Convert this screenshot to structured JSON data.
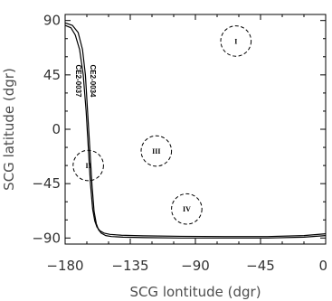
{
  "chart_data": {
    "type": "line",
    "xlabel": "SCG lontitude (dgr)",
    "ylabel": "SCG latitude (dgr)",
    "xlim": [
      -180,
      0
    ],
    "ylim": [
      -95,
      95
    ],
    "xticks": [
      -180,
      -135,
      -90,
      -45,
      0
    ],
    "yticks": [
      90,
      45,
      0,
      -45,
      -90
    ],
    "xtick_labels": [
      "−180",
      "−135",
      "−90",
      "−45",
      "0"
    ],
    "ytick_labels": [
      "90",
      "45",
      "0",
      "−45",
      "−90"
    ],
    "grid": false,
    "series": [
      {
        "name": "CE2-0037",
        "x": [
          -180,
          -175,
          -171,
          -168,
          -166,
          -164.5,
          -163,
          -161.5,
          -160,
          -158.5,
          -157,
          -155,
          -152,
          -148,
          -140,
          -125,
          -100,
          -70,
          -40,
          -15,
          0
        ],
        "y": [
          88,
          86,
          80,
          66,
          45,
          15,
          -15,
          -45,
          -68,
          -78,
          -83,
          -86,
          -88,
          -88.8,
          -89.3,
          -89.7,
          -90,
          -90,
          -90,
          -89.3,
          -88
        ]
      },
      {
        "name": "CE2-0034",
        "x": [
          -180,
          -176,
          -173,
          -170,
          -167.5,
          -165.5,
          -164,
          -162.5,
          -161,
          -159.5,
          -158,
          -156,
          -153,
          -149,
          -141,
          -126,
          -100,
          -70,
          -40,
          -15,
          0
        ],
        "y": [
          86,
          84,
          78,
          66,
          45,
          15,
          -15,
          -45,
          -66,
          -76,
          -81,
          -84,
          -86,
          -87,
          -87.7,
          -88.2,
          -88.6,
          -88.8,
          -88.8,
          -88,
          -86.5
        ]
      }
    ],
    "annotations": [
      {
        "label": "I",
        "x": -62,
        "y": 73,
        "r": 10.5
      },
      {
        "label": "II",
        "x": -164,
        "y": -30,
        "r": 10.5
      },
      {
        "label": "III",
        "x": -117,
        "y": -18,
        "r": 10.5
      },
      {
        "label": "IV",
        "x": -96,
        "y": -66,
        "r": 10.5
      }
    ]
  }
}
